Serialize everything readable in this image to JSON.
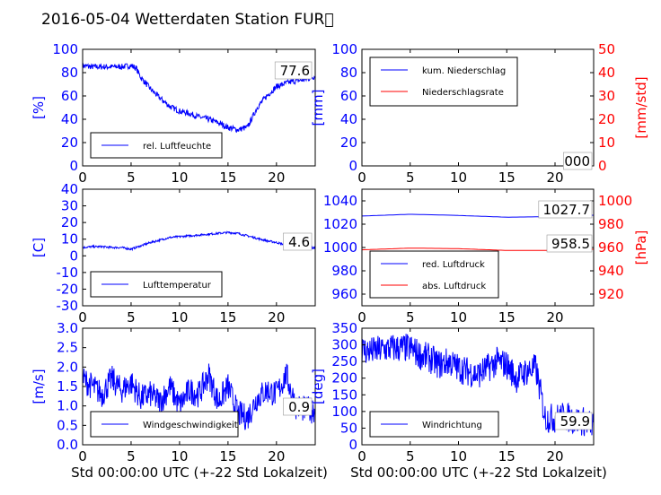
{
  "title": "2016-05-04 Wetterdaten Station FUR\u0000",
  "xlabel": "Std 00:00:00 UTC (+-22 Std Lokalzeit)",
  "colors": {
    "left_axis": "#0000ff",
    "right_axis": "#ff0000",
    "series_blue": "#0000ff",
    "series_red": "#ff0000"
  },
  "chart_data": [
    {
      "id": "humidity",
      "type": "line",
      "ylabel": "[%]",
      "ylim": [
        0,
        100
      ],
      "xlim": [
        0,
        24
      ],
      "xticks": [
        0,
        5,
        10,
        15,
        20
      ],
      "yticks": [
        0,
        20,
        40,
        60,
        80,
        100
      ],
      "legend_position": "bottom-left",
      "series": [
        {
          "name": "rel. Luftfeuchte",
          "color": "#0000ff",
          "x": [
            0,
            1,
            2,
            3,
            4,
            5,
            5.5,
            6,
            7,
            8,
            9,
            10,
            11,
            12,
            13,
            14,
            15,
            16,
            17,
            18,
            19,
            20,
            21,
            22,
            23,
            24
          ],
          "y": [
            86,
            85,
            85,
            85,
            85,
            86,
            84,
            76,
            66,
            58,
            51,
            47,
            45,
            42,
            40,
            37,
            33,
            31,
            33,
            50,
            60,
            68,
            71,
            73,
            74,
            77
          ],
          "noise": 2.5
        }
      ],
      "annotation": "77.6"
    },
    {
      "id": "precip",
      "type": "line",
      "ylabel": "[mm]",
      "ylabel_right": "[mm/std]",
      "ylim": [
        0,
        100
      ],
      "ylim_right": [
        0,
        50
      ],
      "xlim": [
        0,
        24
      ],
      "xticks": [
        0,
        5,
        10,
        15,
        20
      ],
      "yticks": [
        0,
        20,
        40,
        60,
        80,
        100
      ],
      "yticks_right": [
        0,
        10,
        20,
        30,
        40,
        50
      ],
      "legend_position": "top-left",
      "series": [
        {
          "name": "kum. Niederschlag",
          "color": "#0000ff",
          "x": [
            0,
            24
          ],
          "y": [
            0,
            0
          ],
          "noise": 0
        },
        {
          "name": "Niederschlagsrate",
          "color": "#ff0000",
          "axis": "right",
          "x": [
            0,
            24
          ],
          "y": [
            0,
            0
          ],
          "noise": 0
        }
      ],
      "annotation": "000"
    },
    {
      "id": "temperature",
      "type": "line",
      "ylabel": "[C]",
      "ylim": [
        -30,
        40
      ],
      "xlim": [
        0,
        24
      ],
      "xticks": [
        0,
        5,
        10,
        15,
        20
      ],
      "yticks": [
        -30,
        -20,
        -10,
        0,
        10,
        20,
        30,
        40
      ],
      "legend_position": "bottom-left",
      "series": [
        {
          "name": "Lufttemperatur",
          "color": "#0000ff",
          "x": [
            0,
            1,
            2,
            3,
            4,
            5,
            6,
            7,
            8,
            9,
            10,
            11,
            12,
            13,
            14,
            15,
            16,
            17,
            18,
            19,
            20,
            21,
            22,
            23,
            24
          ],
          "y": [
            5,
            5.5,
            5.5,
            5,
            5,
            4,
            6,
            8,
            9.5,
            11,
            11.5,
            12,
            12.5,
            13,
            13.5,
            14,
            13.5,
            12,
            10.5,
            9,
            8,
            6.5,
            5.5,
            5,
            4.6
          ],
          "noise": 0.6
        }
      ],
      "annotation": "4.6"
    },
    {
      "id": "pressure",
      "type": "line",
      "ylabel_right": "[hPa]",
      "ylim": [
        950,
        1050
      ],
      "ylim_right": [
        910,
        1010
      ],
      "xlim": [
        0,
        24
      ],
      "xticks": [
        0,
        5,
        10,
        15,
        20
      ],
      "yticks": [
        960,
        980,
        1000,
        1020,
        1040
      ],
      "yticks_right": [
        920,
        940,
        960,
        980,
        1000
      ],
      "legend_position": "bottom-left",
      "series": [
        {
          "name": "red. Luftdruck",
          "color": "#0000ff",
          "x": [
            0,
            5,
            10,
            15,
            20,
            24
          ],
          "y": [
            1027,
            1028.5,
            1027.5,
            1026,
            1026.5,
            1027.7
          ],
          "noise": 0
        },
        {
          "name": "abs. Luftdruck",
          "color": "#ff0000",
          "axis": "right",
          "x": [
            0,
            5,
            10,
            15,
            20,
            24
          ],
          "y": [
            958,
            959.5,
            959,
            957.5,
            957.5,
            958.5
          ],
          "noise": 0
        }
      ],
      "annotations": [
        "1027.7",
        "958.5"
      ]
    },
    {
      "id": "wind_speed",
      "type": "line",
      "ylabel": "[m/s]",
      "ylim": [
        0,
        3
      ],
      "xlim": [
        0,
        24
      ],
      "xticks": [
        0,
        5,
        10,
        15,
        20
      ],
      "yticks": [
        0.0,
        0.5,
        1.0,
        1.5,
        2.0,
        2.5,
        3.0
      ],
      "legend_position": "bottom-left",
      "series": [
        {
          "name": "Windgeschwindigkeit",
          "color": "#0000ff",
          "x": [
            0,
            1,
            2,
            3,
            4,
            5,
            6,
            7,
            8,
            9,
            10,
            11,
            12,
            13,
            14,
            15,
            16,
            17,
            18,
            19,
            20,
            21,
            22,
            23,
            24
          ],
          "y": [
            1.7,
            1.5,
            1.3,
            1.7,
            1.4,
            1.6,
            1.2,
            1.3,
            1.1,
            1.5,
            1.0,
            1.4,
            1.3,
            1.8,
            1.1,
            1.5,
            0.8,
            0.7,
            1.2,
            1.4,
            1.3,
            1.8,
            1.0,
            0.9,
            0.9
          ],
          "noise": 0.35
        }
      ],
      "annotation": "0.9"
    },
    {
      "id": "wind_dir",
      "type": "line",
      "ylabel": "[deg]",
      "ylim": [
        0,
        350
      ],
      "xlim": [
        0,
        24
      ],
      "xticks": [
        0,
        5,
        10,
        15,
        20
      ],
      "yticks": [
        0,
        50,
        100,
        150,
        200,
        250,
        300,
        350
      ],
      "legend_position": "bottom-left",
      "series": [
        {
          "name": "Windrichtung",
          "color": "#0000ff",
          "x": [
            0,
            1,
            2,
            3,
            4,
            5,
            6,
            7,
            8,
            9,
            10,
            11,
            12,
            13,
            14,
            15,
            16,
            17,
            18,
            19,
            20,
            21,
            22,
            23,
            24
          ],
          "y": [
            285,
            280,
            285,
            290,
            290,
            290,
            270,
            260,
            240,
            250,
            230,
            220,
            210,
            230,
            250,
            240,
            200,
            220,
            230,
            80,
            80,
            85,
            75,
            70,
            60
          ],
          "noise": 45
        }
      ],
      "annotation": "59.9"
    }
  ]
}
